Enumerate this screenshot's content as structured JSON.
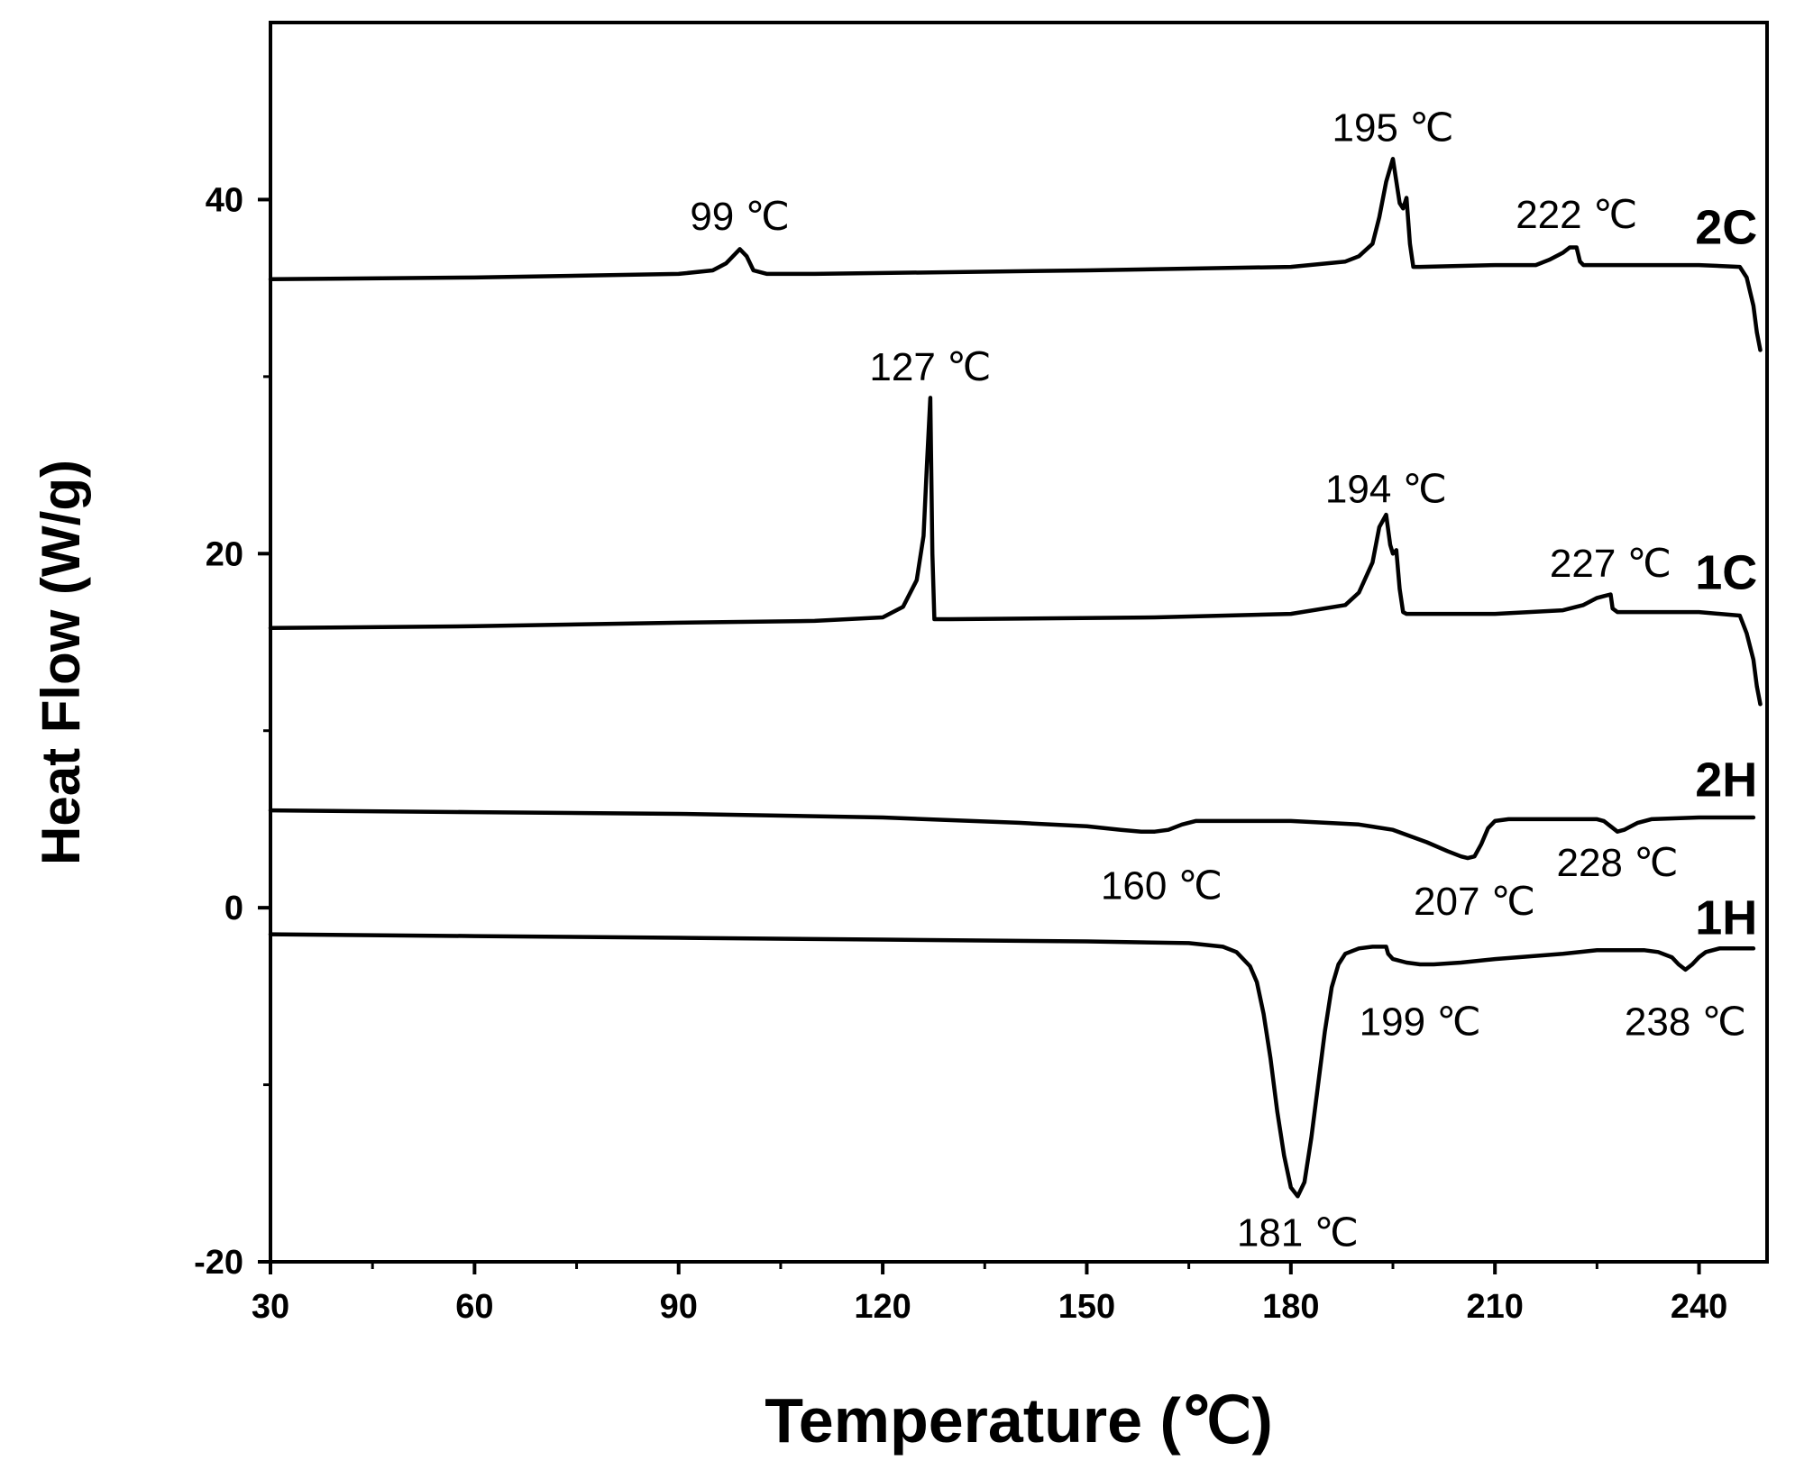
{
  "chart_data": {
    "type": "line",
    "xlabel": "Temperature (℃)",
    "ylabel": "Heat Flow (W/g)",
    "xlim": [
      30,
      250
    ],
    "ylim": [
      -20,
      50
    ],
    "xticks": [
      30,
      60,
      90,
      120,
      150,
      180,
      210,
      240
    ],
    "yticks": [
      -20,
      0,
      20,
      40
    ],
    "x_minor_ticks": [
      45,
      75,
      105,
      135,
      165,
      195,
      225
    ],
    "y_minor_ticks": [
      -10,
      10,
      30
    ],
    "grid": false,
    "line_color": "#000000",
    "series": [
      {
        "name": "2C",
        "x": [
          30,
          60,
          90,
          95,
          97,
          99,
          100,
          101,
          103,
          110,
          150,
          180,
          188,
          190,
          192,
          193,
          194,
          195,
          196,
          196.5,
          197,
          197.5,
          198,
          199,
          210,
          216,
          218,
          220,
          221,
          222,
          222.5,
          223,
          240,
          246,
          247,
          248,
          248.5,
          249
        ],
        "y": [
          35.5,
          35.6,
          35.8,
          36,
          36.4,
          37.2,
          36.8,
          36,
          35.8,
          35.8,
          36,
          36.2,
          36.5,
          36.8,
          37.5,
          39,
          41,
          42.3,
          39.8,
          39.5,
          40.1,
          37.5,
          36.2,
          36.2,
          36.3,
          36.3,
          36.6,
          37,
          37.3,
          37.3,
          36.5,
          36.3,
          36.3,
          36.2,
          35.6,
          34,
          32.5,
          31.5
        ]
      },
      {
        "name": "1C",
        "x": [
          30,
          60,
          90,
          110,
          120,
          123,
          125,
          126,
          126.5,
          127,
          127.3,
          127.6,
          130,
          160,
          180,
          188,
          190,
          192,
          193,
          194,
          194.6,
          195,
          195.5,
          196,
          196.5,
          197,
          210,
          220,
          223,
          225,
          226,
          227,
          227.3,
          228,
          240,
          246,
          247,
          248,
          248.5,
          249
        ],
        "y": [
          15.8,
          15.9,
          16.1,
          16.2,
          16.4,
          17,
          18.5,
          21,
          25,
          28.8,
          20,
          16.3,
          16.3,
          16.4,
          16.6,
          17.1,
          17.8,
          19.5,
          21.5,
          22.2,
          20.5,
          20,
          20.2,
          18,
          16.7,
          16.6,
          16.6,
          16.8,
          17.1,
          17.5,
          17.6,
          17.7,
          16.9,
          16.7,
          16.7,
          16.5,
          15.5,
          14,
          12.5,
          11.5
        ]
      },
      {
        "name": "2H",
        "x": [
          30,
          60,
          90,
          120,
          140,
          150,
          155,
          158,
          160,
          162,
          164,
          166,
          170,
          180,
          190,
          195,
          200,
          203,
          205,
          206,
          207,
          208,
          209,
          210,
          212,
          220,
          225,
          226,
          227,
          228,
          229,
          230,
          231,
          233,
          240,
          248
        ],
        "y": [
          5.5,
          5.4,
          5.3,
          5.1,
          4.8,
          4.6,
          4.4,
          4.3,
          4.3,
          4.4,
          4.7,
          4.9,
          4.9,
          4.9,
          4.7,
          4.4,
          3.7,
          3.2,
          2.9,
          2.8,
          2.9,
          3.6,
          4.5,
          4.9,
          5,
          5,
          5,
          4.9,
          4.6,
          4.3,
          4.4,
          4.6,
          4.8,
          5,
          5.1,
          5.1
        ]
      },
      {
        "name": "1H",
        "x": [
          30,
          60,
          90,
          120,
          150,
          165,
          170,
          172,
          174,
          175,
          176,
          177,
          178,
          179,
          180,
          181,
          182,
          183,
          184,
          185,
          186,
          187,
          188,
          190,
          192,
          194,
          194.3,
          195,
          197,
          199,
          201,
          205,
          210,
          220,
          225,
          232,
          234,
          236,
          237,
          238,
          239,
          240,
          241,
          243,
          248
        ],
        "y": [
          -1.5,
          -1.6,
          -1.7,
          -1.8,
          -1.9,
          -2.0,
          -2.2,
          -2.5,
          -3.3,
          -4.2,
          -6,
          -8.5,
          -11.5,
          -14,
          -15.8,
          -16.3,
          -15.5,
          -13,
          -10,
          -7,
          -4.5,
          -3.2,
          -2.6,
          -2.3,
          -2.2,
          -2.2,
          -2.6,
          -2.9,
          -3.1,
          -3.2,
          -3.2,
          -3.1,
          -2.9,
          -2.6,
          -2.4,
          -2.4,
          -2.5,
          -2.8,
          -3.2,
          -3.5,
          -3.2,
          -2.8,
          -2.5,
          -2.3,
          -2.3
        ]
      }
    ],
    "series_labels": [
      {
        "text": "2C",
        "x": 244,
        "y": 37.5
      },
      {
        "text": "1C",
        "x": 244,
        "y": 18
      },
      {
        "text": "2H",
        "x": 244,
        "y": 6.3
      },
      {
        "text": "1H",
        "x": 244,
        "y": -1.5
      }
    ],
    "annotations": [
      {
        "text": "99 ℃",
        "x": 99,
        "y": 38.3
      },
      {
        "text": "195 ℃",
        "x": 195,
        "y": 43.3
      },
      {
        "text": "222 ℃",
        "x": 222,
        "y": 38.4
      },
      {
        "text": "127 ℃",
        "x": 127,
        "y": 29.8
      },
      {
        "text": "194 ℃",
        "x": 194,
        "y": 22.9
      },
      {
        "text": "227 ℃",
        "x": 227,
        "y": 18.7
      },
      {
        "text": "160 ℃",
        "x": 161,
        "y": 0.5
      },
      {
        "text": "207 ℃",
        "x": 207,
        "y": -0.4
      },
      {
        "text": "228 ℃",
        "x": 228,
        "y": 1.8
      },
      {
        "text": "199 ℃",
        "x": 199,
        "y": -7.2
      },
      {
        "text": "238 ℃",
        "x": 238,
        "y": -7.2
      },
      {
        "text": "181 ℃",
        "x": 181,
        "y": -19.1
      }
    ]
  }
}
